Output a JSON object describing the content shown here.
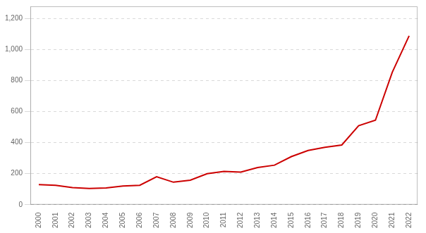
{
  "chart_data": {
    "type": "line",
    "x": [
      2000,
      2001,
      2002,
      2003,
      2004,
      2005,
      2006,
      2007,
      2008,
      2009,
      2010,
      2011,
      2012,
      2013,
      2014,
      2015,
      2016,
      2017,
      2018,
      2019,
      2020,
      2021,
      2022
    ],
    "values": [
      130,
      125,
      110,
      105,
      108,
      120,
      125,
      180,
      145,
      158,
      200,
      215,
      210,
      240,
      255,
      310,
      350,
      370,
      385,
      510,
      545,
      855,
      1090
    ],
    "color": "#cc0000",
    "xlim": [
      1999.5,
      2022.5
    ],
    "xticks": [
      2000,
      2001,
      2002,
      2003,
      2004,
      2005,
      2006,
      2007,
      2008,
      2009,
      2010,
      2011,
      2012,
      2013,
      2014,
      2015,
      2016,
      2017,
      2018,
      2019,
      2020,
      2021,
      2022
    ],
    "ylim": [
      0,
      1280
    ],
    "yticks": [
      0,
      200,
      400,
      600,
      800,
      {
        "value": 1000,
        "label": "1,000"
      },
      {
        "value": 1200,
        "label": "1,200"
      }
    ],
    "grid": true
  }
}
